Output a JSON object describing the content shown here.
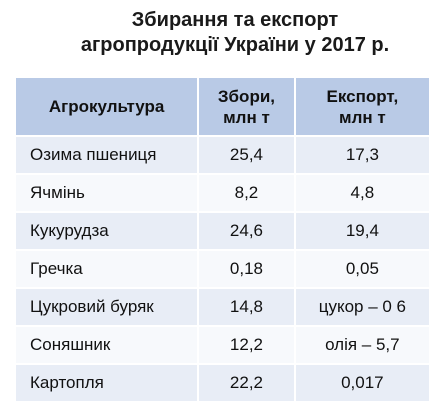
{
  "header": {
    "title": [
      "Збирання та експорт",
      "агропродукції України у 2017 р."
    ]
  },
  "table": {
    "columns": [
      [
        "Агрокультура"
      ],
      [
        "Збори,",
        "млн т"
      ],
      [
        "Експорт,",
        "млн т"
      ]
    ],
    "rows": [
      [
        "Озима пшениця",
        "25,4",
        "17,3"
      ],
      [
        "Ячмінь",
        "8,2",
        "4,8"
      ],
      [
        "Кукурудза",
        "24,6",
        "19,4"
      ],
      [
        "Гречка",
        "0,18",
        "0,05"
      ],
      [
        "Цукровий буряк",
        "14,8",
        "цукор – 0 6"
      ],
      [
        "Соняшник",
        "12,2",
        "олія – 5,7"
      ],
      [
        "Картопля",
        "22,2",
        "0,017"
      ]
    ]
  }
}
